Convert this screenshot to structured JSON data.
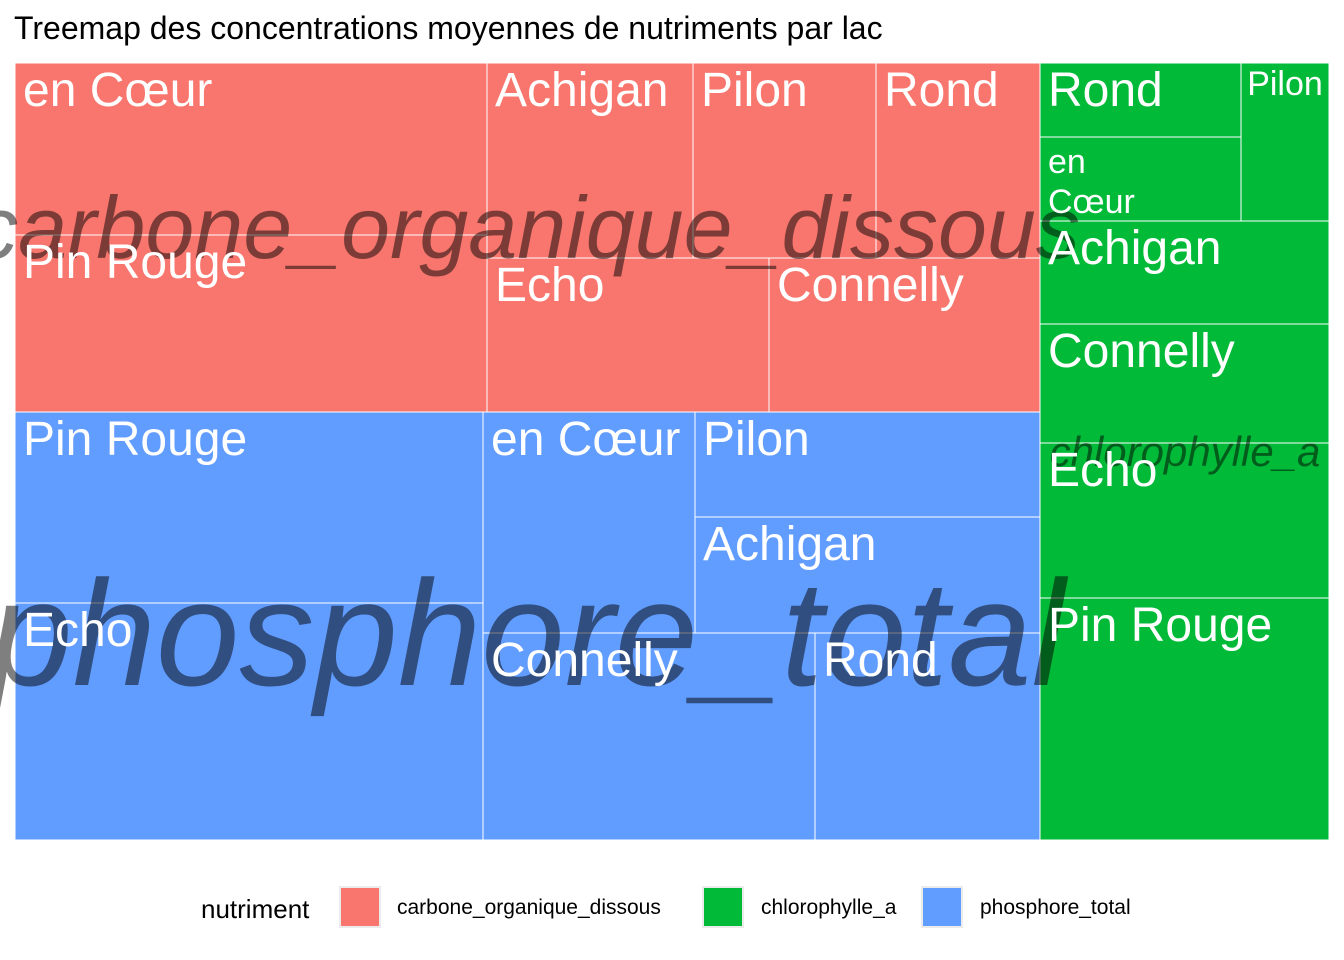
{
  "title": "Treemap des concentrations moyennes de nutriments par lac",
  "chart_data": {
    "type": "treemap",
    "groups": [
      {
        "name": "carbone_organique_dissous",
        "color": "#F8766D",
        "leaves": [
          {
            "lake": "en Cœur",
            "value": 8.1
          },
          {
            "lake": "Pin Rouge",
            "value": 8.1
          },
          {
            "lake": "Achigan",
            "value": 4.0
          },
          {
            "lake": "Pilon",
            "value": 3.5
          },
          {
            "lake": "Rond",
            "value": 3.15
          },
          {
            "lake": "Echo",
            "value": 4.8
          },
          {
            "lake": "Connelly",
            "value": 4.6
          }
        ]
      },
      {
        "name": "chlorophylle_a",
        "color": "#00BA38",
        "leaves": [
          {
            "lake": "Rond",
            "value": 1.35
          },
          {
            "lake": "en Cœur",
            "value": 1.14
          },
          {
            "lake": "Pilon",
            "value": 1.42
          },
          {
            "lake": "Achigan",
            "value": 1.94
          },
          {
            "lake": "Connelly",
            "value": 2.22
          },
          {
            "lake": "Echo",
            "value": 2.9
          },
          {
            "lake": "Pin Rouge",
            "value": 4.5
          }
        ]
      },
      {
        "name": "phosphore_total",
        "color": "#619CFF",
        "leaves": [
          {
            "lake": "Pin Rouge",
            "value": 8.9
          },
          {
            "lake": "Echo",
            "value": 11.0
          },
          {
            "lake": "en Cœur",
            "value": 4.8
          },
          {
            "lake": "Pilon",
            "value": 3.6
          },
          {
            "lake": "Achigan",
            "value": 4.1
          },
          {
            "lake": "Connelly",
            "value": 5.2
          },
          {
            "lake": "Rond",
            "value": 3.5
          }
        ]
      }
    ]
  },
  "legend": {
    "title": "nutriment",
    "items": [
      {
        "label": "carbone_organique_dissous",
        "color": "#F8766D"
      },
      {
        "label": "chlorophylle_a",
        "color": "#00BA38"
      },
      {
        "label": "phosphore_total",
        "color": "#619CFF"
      }
    ]
  }
}
